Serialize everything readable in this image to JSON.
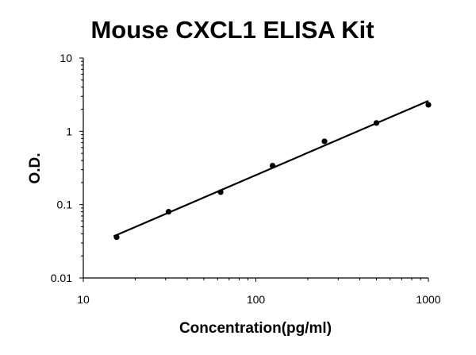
{
  "chart_data": {
    "type": "scatter",
    "title": "Mouse CXCL1 ELISA Kit",
    "xlabel": "Concentration(pg/ml)",
    "ylabel": "O.D.",
    "x_scale": "log",
    "y_scale": "log",
    "xlim": [
      10,
      1000
    ],
    "ylim": [
      0.01,
      10
    ],
    "x_ticks": [
      {
        "value": 10,
        "label": "10"
      },
      {
        "value": 100,
        "label": "100"
      },
      {
        "value": 1000,
        "label": "1000"
      }
    ],
    "y_ticks": [
      {
        "value": 0.01,
        "label": "0.01"
      },
      {
        "value": 0.1,
        "label": "0.1"
      },
      {
        "value": 1,
        "label": "1"
      },
      {
        "value": 10,
        "label": "10"
      }
    ],
    "grid": false,
    "legend": "none",
    "series": [
      {
        "x": [
          15.6,
          31.2,
          62.5,
          125,
          250,
          500,
          1000
        ],
        "y": [
          0.036,
          0.08,
          0.148,
          0.34,
          0.73,
          1.3,
          2.3
        ],
        "trendline": {
          "type": "power",
          "x_range": [
            15,
            1000
          ],
          "y_range": [
            0.037,
            2.6
          ]
        }
      }
    ],
    "colors": {
      "marker": "#000000",
      "line": "#000000",
      "axis": "#000000"
    }
  }
}
